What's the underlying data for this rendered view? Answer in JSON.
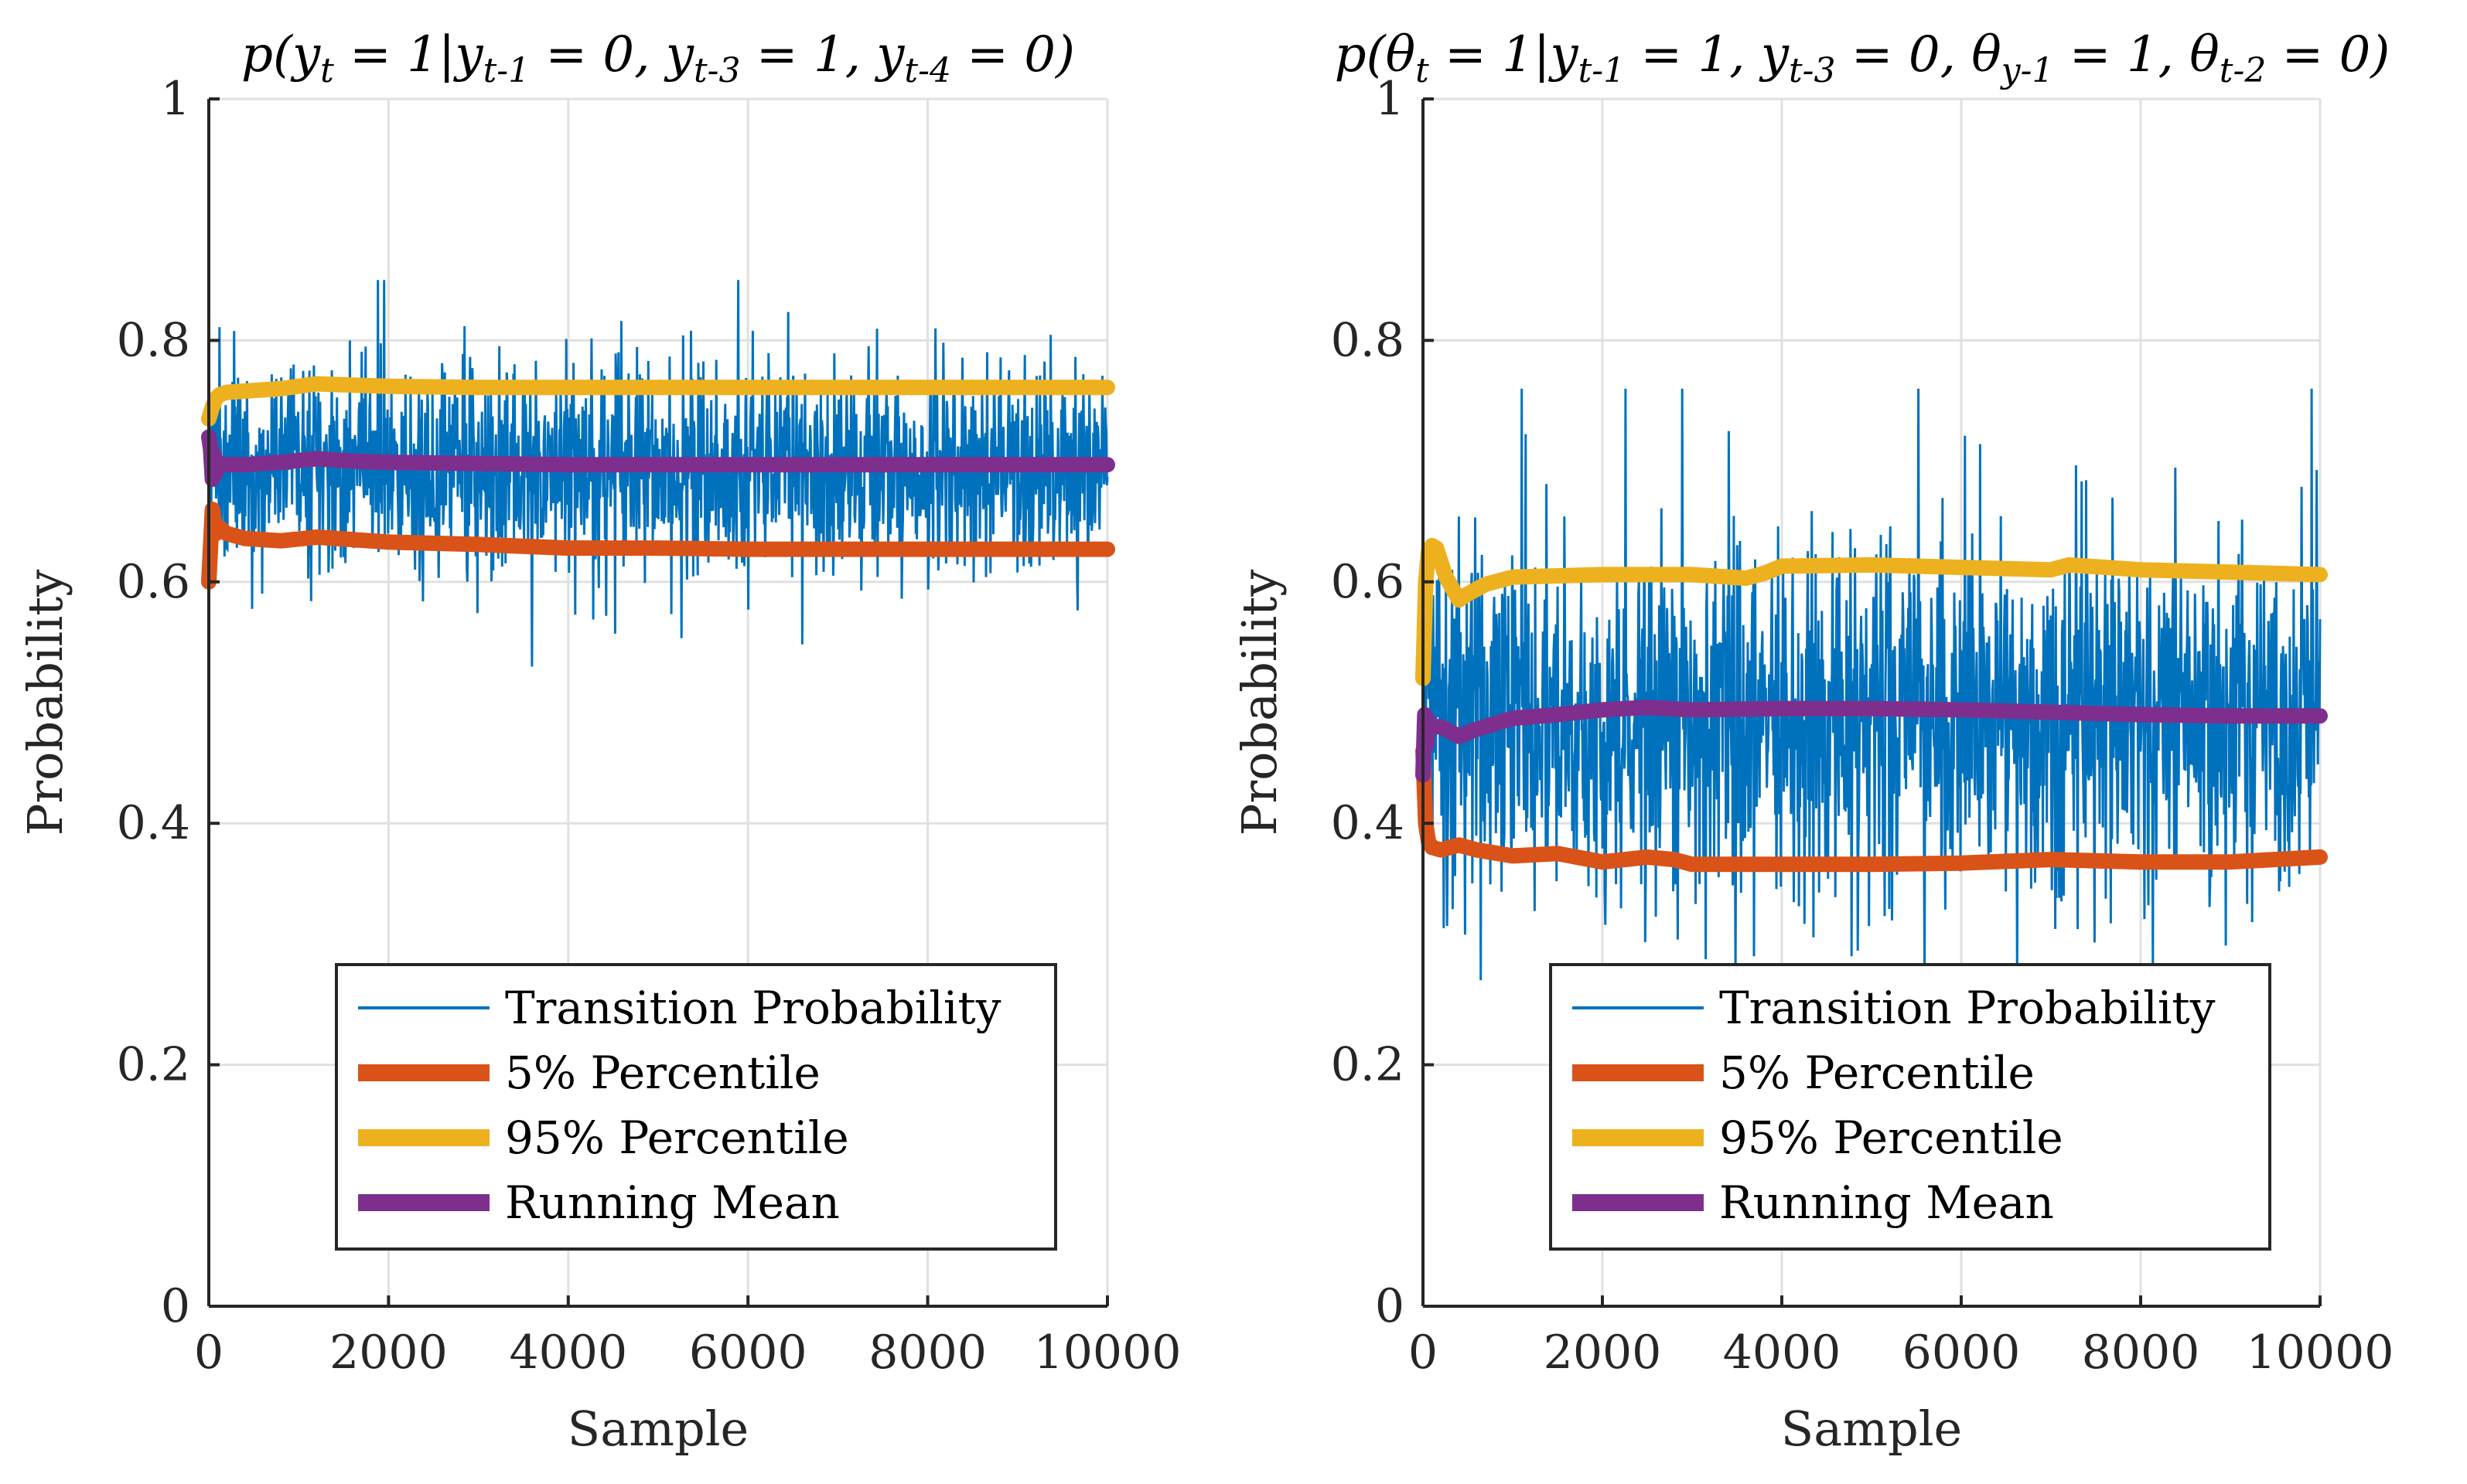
{
  "chart_data": [
    {
      "type": "line",
      "title": "p(y_t = 1|y_{t-1} = 0, y_{t-3} = 1, y_{t-4} = 0)",
      "xlabel": "Sample",
      "ylabel": "Probability",
      "xlim": [
        0,
        10000
      ],
      "ylim": [
        0,
        1
      ],
      "xticks": [
        "0",
        "2000",
        "4000",
        "6000",
        "8000",
        "10000"
      ],
      "yticks": [
        "0",
        "0.2",
        "0.4",
        "0.6",
        "0.8",
        "1"
      ],
      "grid": true,
      "legend_position": "bottom-right",
      "trace": {
        "mean": 0.695,
        "spread": 0.042,
        "min": 0.5,
        "max": 0.85,
        "seed": 7
      },
      "series": [
        {
          "name": "Transition Probability",
          "color": "#0072BD",
          "kind": "trace"
        },
        {
          "name": "5% Percentile",
          "color": "#D95319",
          "kind": "line",
          "x": [
            0,
            40,
            80,
            120,
            200,
            400,
            800,
            1200,
            1600,
            2000,
            3000,
            4000,
            5000,
            6000,
            7000,
            8000,
            9000,
            10000
          ],
          "y": [
            0.6,
            0.66,
            0.64,
            0.645,
            0.64,
            0.636,
            0.634,
            0.637,
            0.635,
            0.633,
            0.631,
            0.628,
            0.628,
            0.627,
            0.627,
            0.627,
            0.627,
            0.627
          ]
        },
        {
          "name": "95% Percentile",
          "color": "#EDB120",
          "kind": "line",
          "x": [
            0,
            40,
            80,
            120,
            200,
            400,
            800,
            1200,
            1600,
            2000,
            3000,
            4000,
            5000,
            6000,
            7000,
            8000,
            9000,
            10000
          ],
          "y": [
            0.735,
            0.745,
            0.752,
            0.755,
            0.757,
            0.758,
            0.76,
            0.764,
            0.763,
            0.762,
            0.761,
            0.761,
            0.761,
            0.761,
            0.761,
            0.761,
            0.761,
            0.761
          ]
        },
        {
          "name": "Running Mean",
          "color": "#7E2F8E",
          "kind": "line",
          "x": [
            0,
            20,
            40,
            60,
            80,
            120,
            200,
            400,
            800,
            1200,
            1600,
            2000,
            3000,
            4000,
            5000,
            6000,
            7000,
            8000,
            9000,
            10000
          ],
          "y": [
            0.72,
            0.71,
            0.685,
            0.705,
            0.69,
            0.698,
            0.697,
            0.697,
            0.699,
            0.702,
            0.7,
            0.699,
            0.698,
            0.697,
            0.697,
            0.697,
            0.697,
            0.697,
            0.697,
            0.697
          ]
        }
      ]
    },
    {
      "type": "line",
      "title": "p(θ_t = 1|y_{t-1} = 1, y_{t-3} = 0, θ_{y-1} = 1, θ_{t-2} = 0)",
      "xlabel": "Sample",
      "ylabel": "Probability",
      "xlim": [
        0,
        10000
      ],
      "ylim": [
        0,
        1
      ],
      "xticks": [
        "0",
        "2000",
        "4000",
        "6000",
        "8000",
        "10000"
      ],
      "yticks": [
        "0",
        "0.2",
        "0.4",
        "0.6",
        "0.8",
        "1"
      ],
      "grid": true,
      "legend_position": "bottom-right",
      "trace": {
        "mean": 0.49,
        "spread": 0.07,
        "min": 0.27,
        "max": 0.76,
        "seed": 13
      },
      "series": [
        {
          "name": "Transition Probability",
          "color": "#0072BD",
          "kind": "trace"
        },
        {
          "name": "5% Percentile",
          "color": "#D95319",
          "kind": "line",
          "x": [
            0,
            30,
            60,
            100,
            200,
            400,
            600,
            1000,
            1500,
            2000,
            2500,
            2800,
            3000,
            4000,
            5000,
            6000,
            7000,
            8000,
            9000,
            10000
          ],
          "y": [
            0.46,
            0.4,
            0.385,
            0.38,
            0.378,
            0.382,
            0.378,
            0.373,
            0.375,
            0.368,
            0.372,
            0.37,
            0.366,
            0.366,
            0.366,
            0.367,
            0.37,
            0.368,
            0.368,
            0.372
          ]
        },
        {
          "name": "95% Percentile",
          "color": "#EDB120",
          "kind": "line",
          "x": [
            0,
            30,
            60,
            100,
            150,
            250,
            400,
            500,
            700,
            1000,
            2000,
            3000,
            3600,
            3800,
            4000,
            5000,
            6000,
            7000,
            7200,
            8000,
            9000,
            10000
          ],
          "y": [
            0.52,
            0.6,
            0.625,
            0.63,
            0.628,
            0.605,
            0.585,
            0.59,
            0.598,
            0.604,
            0.606,
            0.606,
            0.603,
            0.607,
            0.613,
            0.614,
            0.612,
            0.61,
            0.614,
            0.61,
            0.608,
            0.606
          ]
        },
        {
          "name": "Running Mean",
          "color": "#7E2F8E",
          "kind": "line",
          "x": [
            0,
            20,
            40,
            60,
            100,
            200,
            400,
            600,
            1000,
            1500,
            2000,
            2500,
            3000,
            4000,
            5000,
            6000,
            7000,
            8000,
            9000,
            10000
          ],
          "y": [
            0.44,
            0.49,
            0.465,
            0.485,
            0.48,
            0.48,
            0.472,
            0.478,
            0.487,
            0.49,
            0.494,
            0.496,
            0.494,
            0.495,
            0.495,
            0.494,
            0.492,
            0.49,
            0.489,
            0.489
          ]
        }
      ]
    }
  ]
}
